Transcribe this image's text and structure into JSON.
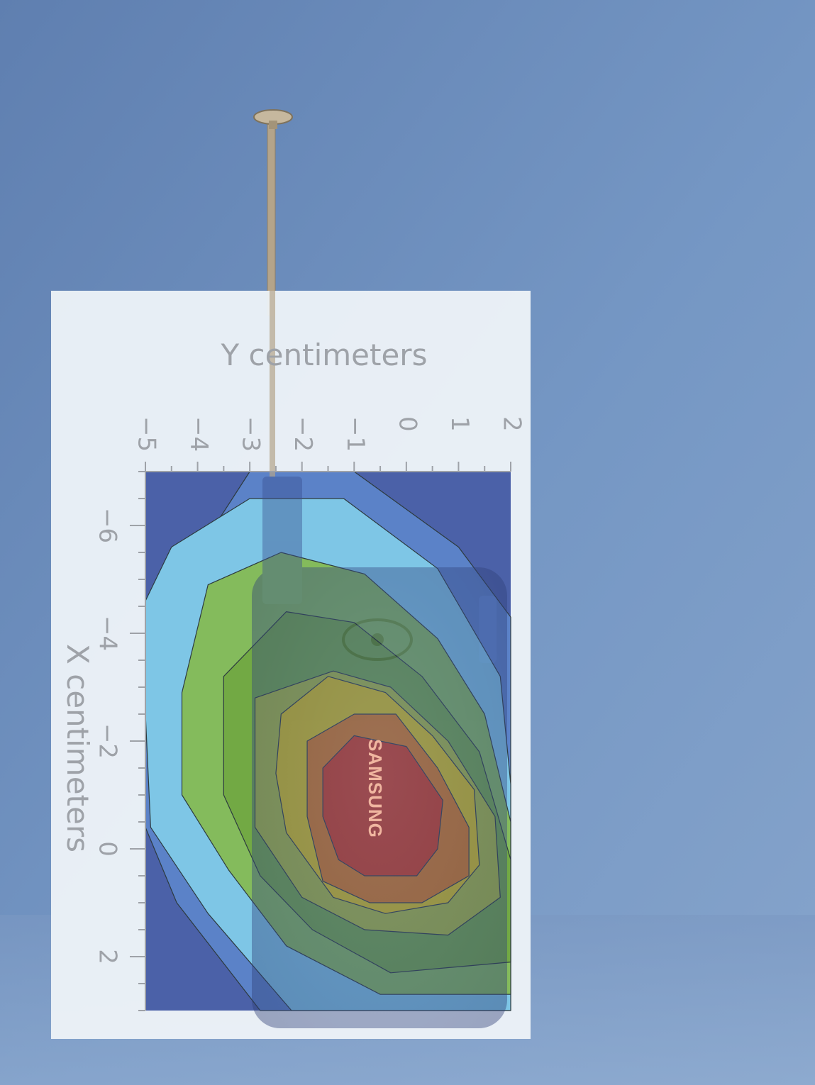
{
  "chart_data": {
    "type": "heatmap",
    "style": "filled-contour",
    "x_axis": {
      "label": "Y centimeters",
      "ticks": [
        -5,
        -4,
        -3,
        -2,
        -1,
        0,
        1,
        2
      ],
      "tick_labels": [
        "−5",
        "−4",
        "−3",
        "−2",
        "−1",
        "0",
        "1",
        "2"
      ],
      "range": [
        -5,
        2
      ],
      "position": "top"
    },
    "y_axis": {
      "label": "X centimeters",
      "ticks": [
        -6,
        -4,
        -2,
        0,
        2
      ],
      "tick_labels": [
        "−6",
        "−4",
        "−2",
        "0",
        "2"
      ],
      "range": [
        -7,
        3
      ],
      "position": "left"
    },
    "levels": 8,
    "peak": {
      "y_cm": -0.9,
      "x_cm": -0.8
    },
    "contours": [
      {
        "level": 1,
        "color": "#5b82c8",
        "points": [
          [
            -5,
            -3.5
          ],
          [
            -4,
            -5.5
          ],
          [
            -3,
            -7
          ],
          [
            -1,
            -7
          ],
          [
            1,
            -5.6
          ],
          [
            2,
            -4.3
          ],
          [
            2,
            3
          ],
          [
            -2.8,
            3
          ],
          [
            -4.4,
            1
          ],
          [
            -5,
            -0.4
          ]
        ]
      },
      {
        "level": 2,
        "color": "#7ec6e6",
        "points": [
          [
            -5,
            -4.6
          ],
          [
            -4.5,
            -5.6
          ],
          [
            -3,
            -6.5
          ],
          [
            -1.2,
            -6.5
          ],
          [
            0.6,
            -5.2
          ],
          [
            1.8,
            -3.2
          ],
          [
            2,
            -1.2
          ],
          [
            2,
            3
          ],
          [
            -2.2,
            3
          ],
          [
            -3.8,
            1.2
          ],
          [
            -4.9,
            -0.4
          ],
          [
            -5,
            -2.5
          ]
        ]
      },
      {
        "level": 3,
        "color": "#84bb5c",
        "points": [
          [
            -4.3,
            -2.9
          ],
          [
            -3.8,
            -4.9
          ],
          [
            -2.4,
            -5.5
          ],
          [
            -0.8,
            -5.1
          ],
          [
            0.6,
            -3.9
          ],
          [
            1.5,
            -2.5
          ],
          [
            2,
            -0.5
          ],
          [
            2,
            2.7
          ],
          [
            -0.5,
            2.7
          ],
          [
            -2.3,
            1.8
          ],
          [
            -3.4,
            0.4
          ],
          [
            -4.3,
            -1
          ]
        ]
      },
      {
        "level": 4,
        "color": "#72a944",
        "points": [
          [
            -3.5,
            -3.2
          ],
          [
            -2.3,
            -4.4
          ],
          [
            -1,
            -4.2
          ],
          [
            0.3,
            -3.2
          ],
          [
            1.4,
            -1.8
          ],
          [
            2,
            0.2
          ],
          [
            2,
            2.1
          ],
          [
            -0.3,
            2.3
          ],
          [
            -1.8,
            1.5
          ],
          [
            -2.8,
            0.5
          ],
          [
            -3.5,
            -1
          ]
        ]
      },
      {
        "level": 5,
        "color": "#a8bc3a",
        "points": [
          [
            -2.9,
            -2.8
          ],
          [
            -1.4,
            -3.3
          ],
          [
            -0.3,
            -3
          ],
          [
            0.8,
            -2
          ],
          [
            1.7,
            -0.6
          ],
          [
            1.8,
            0.9
          ],
          [
            0.8,
            1.6
          ],
          [
            -0.8,
            1.5
          ],
          [
            -2,
            0.9
          ],
          [
            -2.9,
            -0.4
          ]
        ]
      },
      {
        "level": 6,
        "color": "#d8c418",
        "points": [
          [
            -2.4,
            -2.5
          ],
          [
            -1.5,
            -3.2
          ],
          [
            -0.4,
            -2.9
          ],
          [
            0.5,
            -2.1
          ],
          [
            1.3,
            -1.1
          ],
          [
            1.4,
            0.3
          ],
          [
            0.8,
            1
          ],
          [
            -0.4,
            1.2
          ],
          [
            -1.4,
            0.9
          ],
          [
            -2.3,
            -0.3
          ],
          [
            -2.5,
            -1.4
          ]
        ]
      },
      {
        "level": 7,
        "color": "#d87a18",
        "points": [
          [
            -1.9,
            -2
          ],
          [
            -1,
            -2.5
          ],
          [
            -0.2,
            -2.5
          ],
          [
            0.6,
            -1.5
          ],
          [
            1.2,
            -0.4
          ],
          [
            1.2,
            0.5
          ],
          [
            0.3,
            1
          ],
          [
            -0.7,
            1
          ],
          [
            -1.6,
            0.6
          ],
          [
            -1.9,
            -0.6
          ]
        ]
      },
      {
        "level": 8,
        "color": "#d23a16",
        "points": [
          [
            -1.6,
            -1.5
          ],
          [
            -1,
            -2.1
          ],
          [
            0,
            -1.9
          ],
          [
            0.7,
            -0.9
          ],
          [
            0.6,
            0
          ],
          [
            0.2,
            0.5
          ],
          [
            -0.8,
            0.5
          ],
          [
            -1.3,
            0.2
          ],
          [
            -1.6,
            -0.6
          ]
        ]
      }
    ]
  },
  "photo": {
    "brand_text": "SAMSUNG",
    "backdrop_color": "#6d8ebc",
    "phone_color": "#3a4f8f",
    "antenna_color": "#b4a48a",
    "overlay_color": "#eef3f8"
  }
}
